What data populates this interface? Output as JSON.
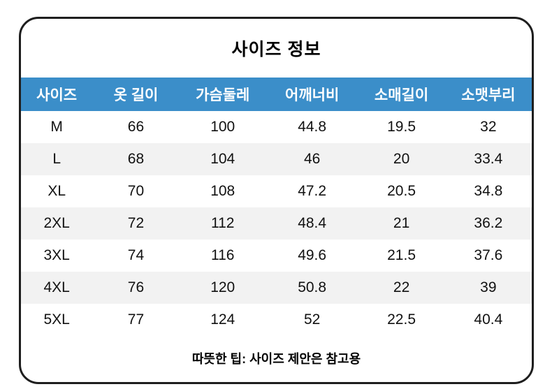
{
  "title": "사이즈 정보",
  "table": {
    "columns": [
      "사이즈",
      "옷 길이",
      "가슴둘레",
      "어깨너비",
      "소매길이",
      "소맷부리"
    ],
    "rows": [
      [
        "M",
        "66",
        "100",
        "44.8",
        "19.5",
        "32"
      ],
      [
        "L",
        "68",
        "104",
        "46",
        "20",
        "33.4"
      ],
      [
        "XL",
        "70",
        "108",
        "47.2",
        "20.5",
        "34.8"
      ],
      [
        "2XL",
        "72",
        "112",
        "48.4",
        "21",
        "36.2"
      ],
      [
        "3XL",
        "74",
        "116",
        "49.6",
        "21.5",
        "37.6"
      ],
      [
        "4XL",
        "76",
        "120",
        "50.8",
        "22",
        "39"
      ],
      [
        "5XL",
        "77",
        "124",
        "52",
        "22.5",
        "40.4"
      ]
    ]
  },
  "footer_note": "따뜻한 팁: 사이즈 제안은 참고용",
  "colors": {
    "header_bg": "#3b8ec9",
    "header_text": "#ffffff",
    "stripe_bg": "#f2f2f2",
    "border": "#1e1e1e",
    "text": "#111111",
    "page_bg": "#ffffff"
  }
}
